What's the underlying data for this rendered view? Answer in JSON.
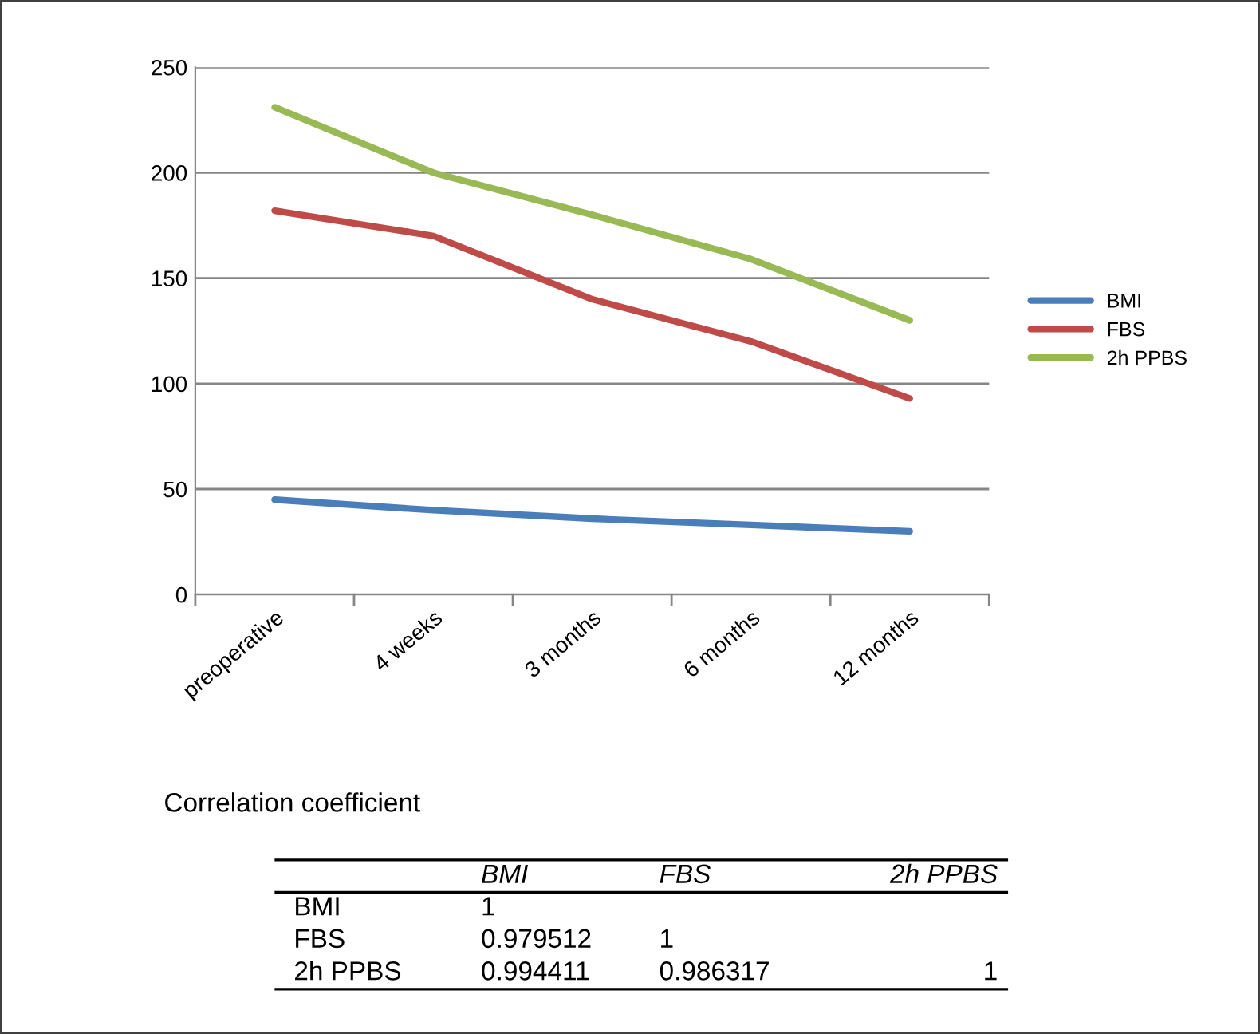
{
  "chart_data": [
    {
      "type": "line",
      "categories": [
        "preoperative",
        "4 weeks",
        "3 months",
        "6 months",
        "12 months"
      ],
      "series": [
        {
          "name": "BMI",
          "color": "#4a7ebb",
          "values": [
            45,
            40,
            36,
            33,
            30
          ]
        },
        {
          "name": "FBS",
          "color": "#be4b48",
          "values": [
            182,
            170,
            140,
            120,
            93
          ]
        },
        {
          "name": "2h PPBS",
          "color": "#98b954",
          "values": [
            231,
            200,
            180,
            159,
            130
          ]
        }
      ],
      "ylim": [
        0,
        250
      ],
      "yticks": [
        0,
        50,
        100,
        150,
        200,
        250
      ],
      "grid": "y",
      "legend": "right",
      "marker": "none",
      "line_style": "solid"
    },
    {
      "type": "heatmap",
      "data_labels": true,
      "title": "Correlation coefficient",
      "categories": [
        "BMI",
        "FBS",
        "2h PPBS"
      ],
      "y_categories": [
        "BMI",
        "FBS",
        "2h PPBS"
      ],
      "cells": [
        [
          1,
          null,
          null
        ],
        [
          0.979512,
          1,
          null
        ],
        [
          0.994411,
          0.986317,
          1
        ]
      ]
    }
  ]
}
